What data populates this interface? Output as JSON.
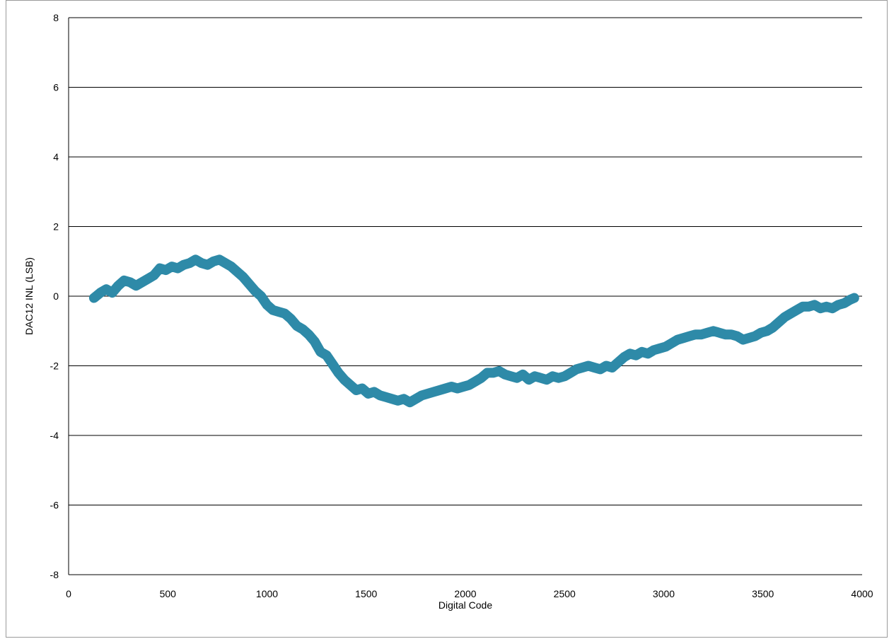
{
  "chart_data": {
    "type": "line",
    "title": "",
    "xlabel": "Digital Code",
    "ylabel": "DAC12 INL (LSB)",
    "xlim": [
      0,
      4000
    ],
    "ylim": [
      -8,
      8
    ],
    "x_ticks": [
      0,
      500,
      1000,
      1500,
      2000,
      2500,
      3000,
      3500,
      4000
    ],
    "y_ticks": [
      -8,
      -6,
      -4,
      -2,
      0,
      2,
      4,
      6,
      8
    ],
    "grid": "horizontal",
    "legend": "none",
    "series": [
      {
        "color": "#2e8aa8",
        "x": [
          128,
          160,
          190,
          220,
          250,
          280,
          310,
          340,
          370,
          400,
          430,
          460,
          490,
          520,
          550,
          580,
          610,
          640,
          670,
          700,
          730,
          760,
          790,
          820,
          850,
          880,
          910,
          940,
          970,
          1000,
          1030,
          1060,
          1090,
          1120,
          1150,
          1180,
          1210,
          1240,
          1270,
          1300,
          1330,
          1360,
          1390,
          1420,
          1450,
          1480,
          1510,
          1540,
          1570,
          1600,
          1630,
          1660,
          1690,
          1720,
          1750,
          1780,
          1810,
          1840,
          1870,
          1900,
          1930,
          1960,
          1990,
          2020,
          2050,
          2080,
          2110,
          2140,
          2170,
          2200,
          2230,
          2260,
          2290,
          2320,
          2350,
          2380,
          2410,
          2440,
          2470,
          2500,
          2530,
          2560,
          2590,
          2620,
          2650,
          2680,
          2710,
          2740,
          2770,
          2800,
          2830,
          2860,
          2890,
          2920,
          2950,
          2980,
          3010,
          3040,
          3070,
          3100,
          3130,
          3160,
          3190,
          3220,
          3250,
          3280,
          3310,
          3340,
          3370,
          3400,
          3430,
          3460,
          3490,
          3520,
          3550,
          3580,
          3610,
          3640,
          3670,
          3700,
          3730,
          3760,
          3790,
          3820,
          3850,
          3880,
          3910,
          3940,
          3960
        ],
        "y": [
          -0.05,
          0.1,
          0.2,
          0.1,
          0.3,
          0.45,
          0.4,
          0.3,
          0.4,
          0.5,
          0.6,
          0.8,
          0.75,
          0.85,
          0.8,
          0.9,
          0.95,
          1.05,
          0.95,
          0.9,
          1.0,
          1.05,
          0.95,
          0.85,
          0.7,
          0.55,
          0.35,
          0.15,
          0.0,
          -0.25,
          -0.4,
          -0.45,
          -0.5,
          -0.65,
          -0.85,
          -0.95,
          -1.1,
          -1.3,
          -1.6,
          -1.7,
          -1.95,
          -2.2,
          -2.4,
          -2.55,
          -2.7,
          -2.65,
          -2.8,
          -2.75,
          -2.85,
          -2.9,
          -2.95,
          -3.0,
          -2.95,
          -3.05,
          -2.95,
          -2.85,
          -2.8,
          -2.75,
          -2.7,
          -2.65,
          -2.6,
          -2.65,
          -2.6,
          -2.55,
          -2.45,
          -2.35,
          -2.2,
          -2.2,
          -2.15,
          -2.25,
          -2.3,
          -2.35,
          -2.25,
          -2.4,
          -2.3,
          -2.35,
          -2.4,
          -2.3,
          -2.35,
          -2.3,
          -2.2,
          -2.1,
          -2.05,
          -2.0,
          -2.05,
          -2.1,
          -2.0,
          -2.05,
          -1.9,
          -1.75,
          -1.65,
          -1.7,
          -1.6,
          -1.65,
          -1.55,
          -1.5,
          -1.45,
          -1.35,
          -1.25,
          -1.2,
          -1.15,
          -1.1,
          -1.1,
          -1.05,
          -1.0,
          -1.05,
          -1.1,
          -1.1,
          -1.15,
          -1.25,
          -1.2,
          -1.15,
          -1.05,
          -1.0,
          -0.9,
          -0.75,
          -0.6,
          -0.5,
          -0.4,
          -0.3,
          -0.3,
          -0.25,
          -0.35,
          -0.3,
          -0.35,
          -0.25,
          -0.2,
          -0.1,
          -0.05
        ]
      }
    ]
  }
}
